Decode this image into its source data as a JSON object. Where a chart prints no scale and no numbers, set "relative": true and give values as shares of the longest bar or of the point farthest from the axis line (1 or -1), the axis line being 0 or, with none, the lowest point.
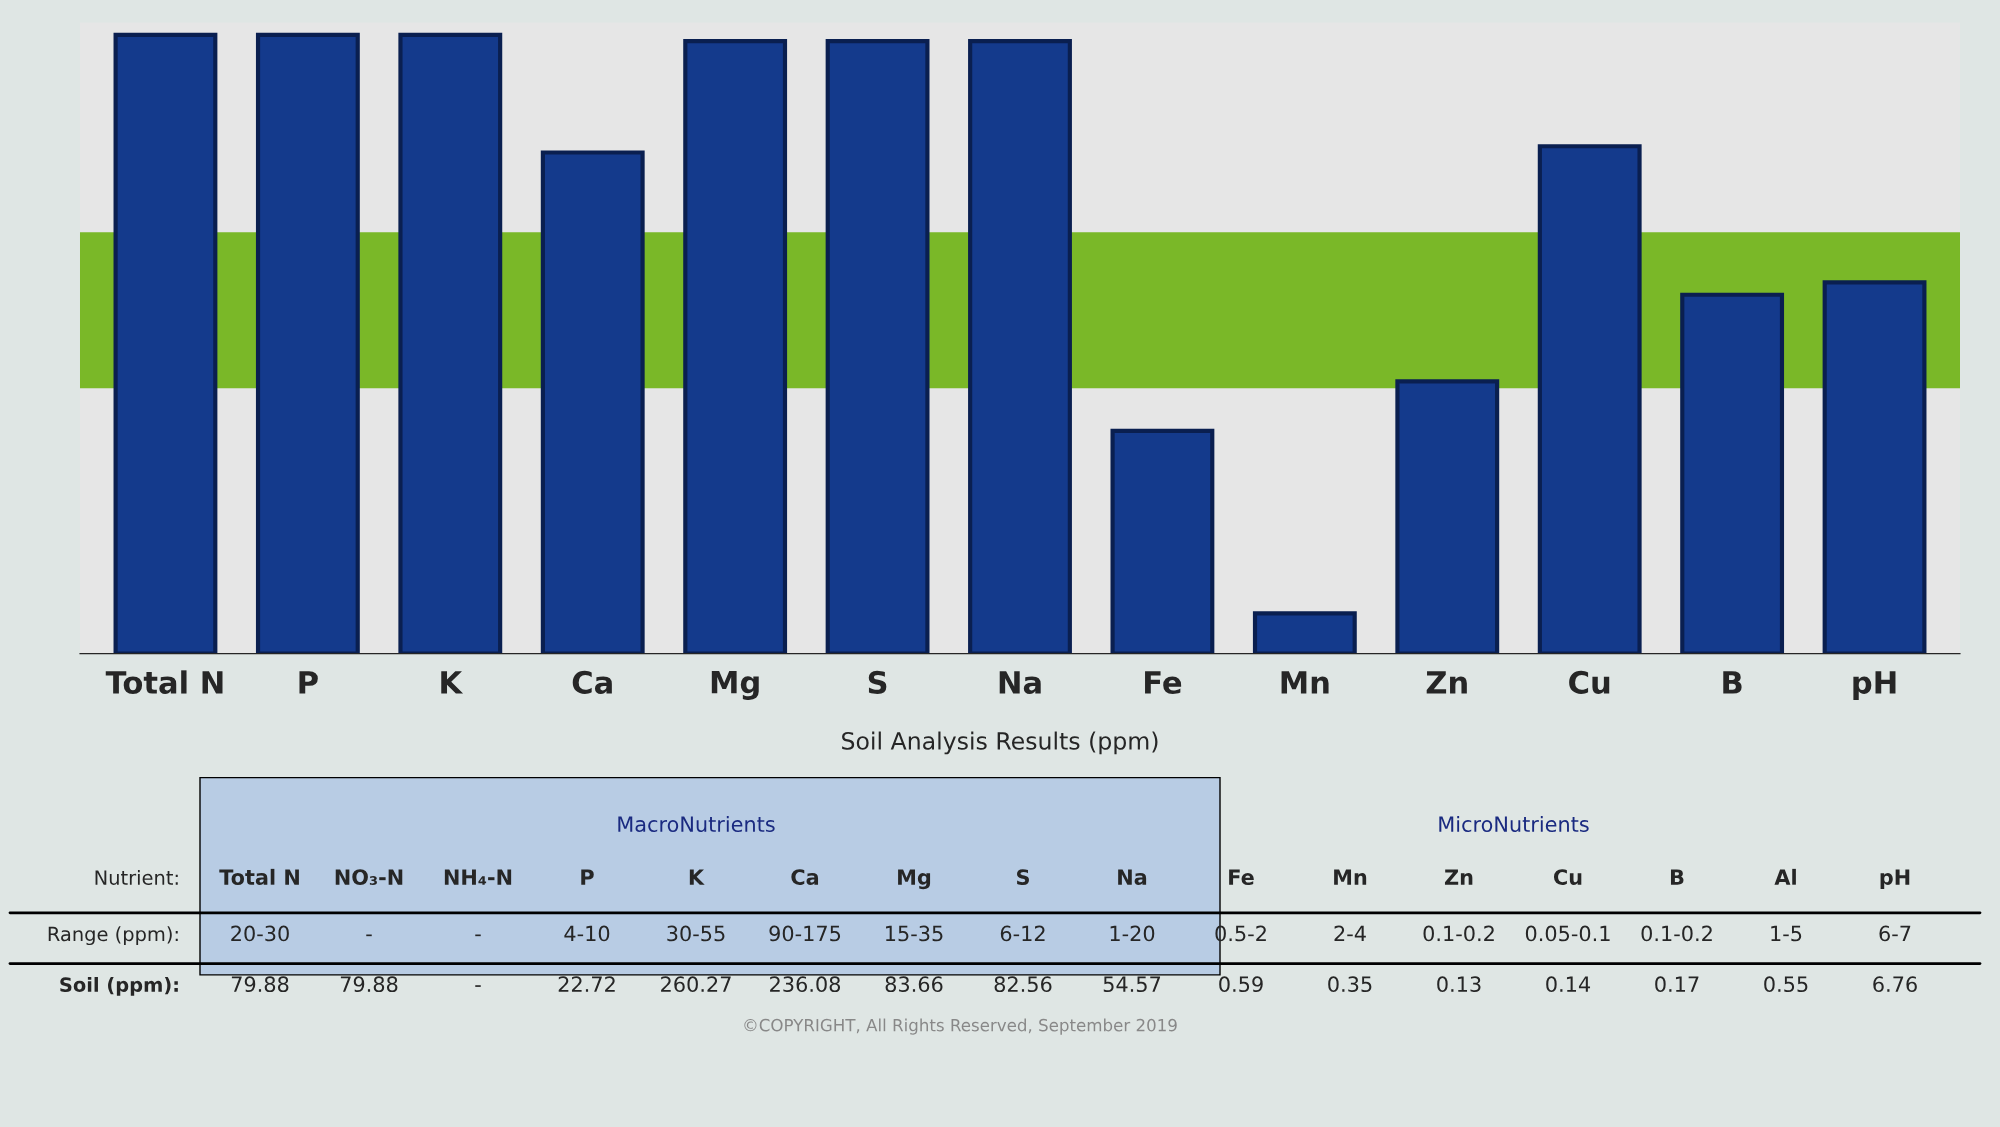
{
  "chart_data": {
    "type": "bar",
    "relative": true,
    "grid": false,
    "legend": false,
    "categories": [
      "Total N",
      "P",
      "K",
      "Ca",
      "Mg",
      "S",
      "Na",
      "Fe",
      "Mn",
      "Zn",
      "Cu",
      "B",
      "pH"
    ],
    "values": [
      1.0,
      1.0,
      1.0,
      0.81,
      0.99,
      0.99,
      0.99,
      0.36,
      0.065,
      0.44,
      0.82,
      0.58,
      0.6
    ],
    "color": "#143a8c",
    "bands": [
      {
        "axis": "y",
        "from": 0.43,
        "to": 0.68,
        "color": "#7ab828"
      }
    ],
    "annotations": [
      "Soil Analysis Results (ppm)",
      "MacroNutrients",
      "MicroNutrients",
      "Nutrient:",
      "Total N",
      "NO₃-N",
      "NH₄-N",
      "P",
      "K",
      "Ca",
      "Mg",
      "S",
      "Na",
      "Fe",
      "Mn",
      "Zn",
      "Cu",
      "B",
      "Al",
      "pH",
      "Range (ppm):",
      "20-30",
      "-",
      "-",
      "4-10",
      "30-55",
      "90-175",
      "15-35",
      "6-12",
      "1-20",
      "0.5-2",
      "2-4",
      "0.1-0.2",
      "0.05-0.1",
      "0.1-0.2",
      "1-5",
      "6-7",
      "Soil (ppm):",
      "79.88",
      "79.88",
      "-",
      "22.72",
      "260.27",
      "236.08",
      "83.66",
      "82.56",
      "54.57",
      "0.59",
      "0.35",
      "0.13",
      "0.14",
      "0.17",
      "0.55",
      "6.76",
      "©COPYRIGHT, All Rights Reserved, September 2019"
    ]
  }
}
